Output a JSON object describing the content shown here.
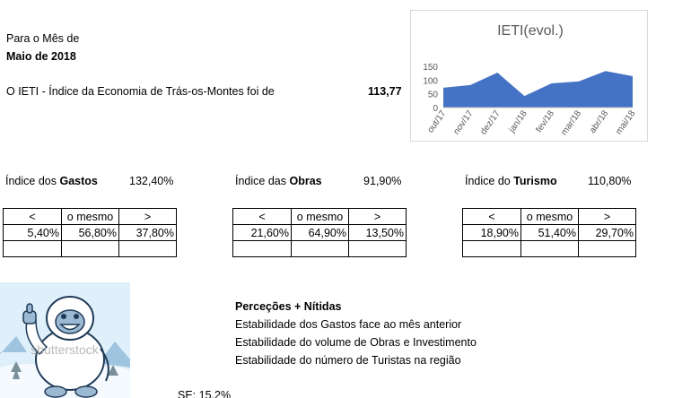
{
  "header": {
    "line1": "Para o Mês de",
    "line2": "Maio de 2018",
    "ieti_sentence": "O IETI - Índice da Economia de Trás-os-Montes foi de",
    "ieti_value": "113,77"
  },
  "chart_data": {
    "type": "area",
    "title": "IETI(evol.)",
    "categories": [
      "out/17",
      "nov/17",
      "dez/17",
      "jan/18",
      "fev/18",
      "mar/18",
      "abr/18",
      "mai/18"
    ],
    "values": [
      72,
      82,
      127,
      42,
      88,
      95,
      133,
      114
    ],
    "yticks": [
      0,
      50,
      100,
      150
    ],
    "ylim": [
      0,
      150
    ],
    "color": "#4472c4",
    "grid": false,
    "legend": "none"
  },
  "indices": [
    {
      "prefix": "Índice dos ",
      "name": "Gastos",
      "value": "132,40%",
      "headers": [
        "<",
        "o mesmo",
        ">"
      ],
      "values": [
        "5,40%",
        "56,80%",
        "37,80%"
      ]
    },
    {
      "prefix": "Índice das ",
      "name": "Obras",
      "value": "91,90%",
      "headers": [
        "<",
        "o mesmo",
        ">"
      ],
      "values": [
        "21,60%",
        "64,90%",
        "13,50%"
      ]
    },
    {
      "prefix": "Índice do ",
      "name": "Turismo",
      "value": "110,80%",
      "headers": [
        "<",
        "o mesmo",
        ">"
      ],
      "values": [
        "18,90%",
        "51,40%",
        "29,70%"
      ]
    }
  ],
  "perceptions": {
    "title": "Perceções + Nítidas",
    "items": [
      "Estabilidade dos Gastos face ao mês anterior",
      "Estabilidade do volume de Obras e Investimento",
      "Estabilidade do número de Turistas na região"
    ]
  },
  "footer": {
    "se": "SE: 15,2%"
  },
  "image": {
    "watermark": "shutterstock",
    "icon": "yeti-thumbs-up-icon"
  }
}
